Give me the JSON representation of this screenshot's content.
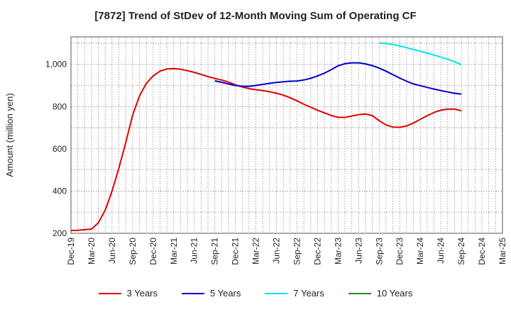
{
  "chart_data": {
    "type": "line",
    "title": "[7872]  Trend of StDev of 12-Month Moving Sum of Operating CF",
    "xlabel": "",
    "ylabel": "Amount (million yen)",
    "ylim": [
      200,
      1130
    ],
    "yticks": [
      200,
      400,
      600,
      800,
      "1,000"
    ],
    "ytick_values": [
      200,
      400,
      600,
      800,
      1000
    ],
    "xlim": [
      "Dec-19",
      "Mar-25"
    ],
    "xticks": [
      "Dec-19",
      "Mar-20",
      "Jun-20",
      "Sep-20",
      "Dec-20",
      "Mar-21",
      "Jun-21",
      "Sep-21",
      "Dec-21",
      "Mar-22",
      "Jun-22",
      "Sep-22",
      "Dec-22",
      "Mar-23",
      "Jun-23",
      "Sep-23",
      "Dec-23",
      "Mar-24",
      "Jun-24",
      "Sep-24",
      "Dec-24",
      "Mar-25"
    ],
    "grid": true,
    "legend_position": "bottom",
    "series": [
      {
        "name": "3 Years",
        "color": "#e00000",
        "x": [
          "Dec-19",
          "Jan-20",
          "Feb-20",
          "Mar-20",
          "Apr-20",
          "May-20",
          "Jun-20",
          "Jul-20",
          "Aug-20",
          "Sep-20",
          "Oct-20",
          "Nov-20",
          "Dec-20",
          "Jan-21",
          "Feb-21",
          "Mar-21",
          "Apr-21",
          "May-21",
          "Jun-21",
          "Jul-21",
          "Aug-21",
          "Sep-21",
          "Oct-21",
          "Nov-21",
          "Dec-21",
          "Jan-22",
          "Feb-22",
          "Mar-22",
          "Apr-22",
          "May-22",
          "Jun-22",
          "Jul-22",
          "Aug-22",
          "Sep-22",
          "Oct-22",
          "Nov-22",
          "Dec-22",
          "Jan-23",
          "Feb-23",
          "Mar-23",
          "Apr-23",
          "May-23",
          "Jun-23",
          "Jul-23",
          "Aug-23",
          "Sep-23",
          "Oct-23",
          "Nov-23",
          "Dec-23",
          "Jan-24",
          "Feb-24",
          "Mar-24",
          "Apr-24",
          "May-24",
          "Jun-24",
          "Jul-24",
          "Aug-24",
          "Sep-24"
        ],
        "values": [
          213,
          214,
          217,
          220,
          250,
          310,
          400,
          510,
          630,
          760,
          850,
          910,
          945,
          968,
          978,
          980,
          977,
          970,
          962,
          952,
          942,
          933,
          926,
          916,
          903,
          893,
          885,
          880,
          876,
          870,
          863,
          854,
          842,
          827,
          811,
          797,
          783,
          770,
          758,
          749,
          749,
          755,
          762,
          765,
          757,
          733,
          713,
          703,
          702,
          708,
          722,
          740,
          757,
          772,
          783,
          788,
          788,
          780
        ]
      },
      {
        "name": "5 Years",
        "color": "#0000cc",
        "x": [
          "Sep-21",
          "Oct-21",
          "Nov-21",
          "Dec-21",
          "Jan-22",
          "Feb-22",
          "Mar-22",
          "Apr-22",
          "May-22",
          "Jun-22",
          "Jul-22",
          "Aug-22",
          "Sep-22",
          "Oct-22",
          "Nov-22",
          "Dec-22",
          "Jan-23",
          "Feb-23",
          "Mar-23",
          "Apr-23",
          "May-23",
          "Jun-23",
          "Jul-23",
          "Aug-23",
          "Sep-23",
          "Oct-23",
          "Nov-23",
          "Dec-23",
          "Jan-24",
          "Feb-24",
          "Mar-24",
          "Apr-24",
          "May-24",
          "Jun-24",
          "Jul-24",
          "Aug-24",
          "Sep-24"
        ],
        "values": [
          922,
          915,
          907,
          900,
          896,
          896,
          900,
          905,
          910,
          914,
          917,
          920,
          921,
          926,
          934,
          945,
          958,
          975,
          993,
          1003,
          1007,
          1007,
          1002,
          994,
          982,
          968,
          951,
          935,
          920,
          907,
          899,
          891,
          883,
          876,
          869,
          863,
          859
        ]
      },
      {
        "name": "7 Years",
        "color": "#00e5ee",
        "x": [
          "Sep-23",
          "Oct-23",
          "Nov-23",
          "Dec-23",
          "Jan-24",
          "Feb-24",
          "Mar-24",
          "Apr-24",
          "May-24",
          "Jun-24",
          "Jul-24",
          "Aug-24",
          "Sep-24"
        ],
        "values": [
          1101,
          1099,
          1094,
          1087,
          1079,
          1070,
          1062,
          1053,
          1044,
          1034,
          1024,
          1012,
          998
        ]
      },
      {
        "name": "10 Years",
        "color": "#228b22",
        "x": [],
        "values": []
      }
    ]
  }
}
